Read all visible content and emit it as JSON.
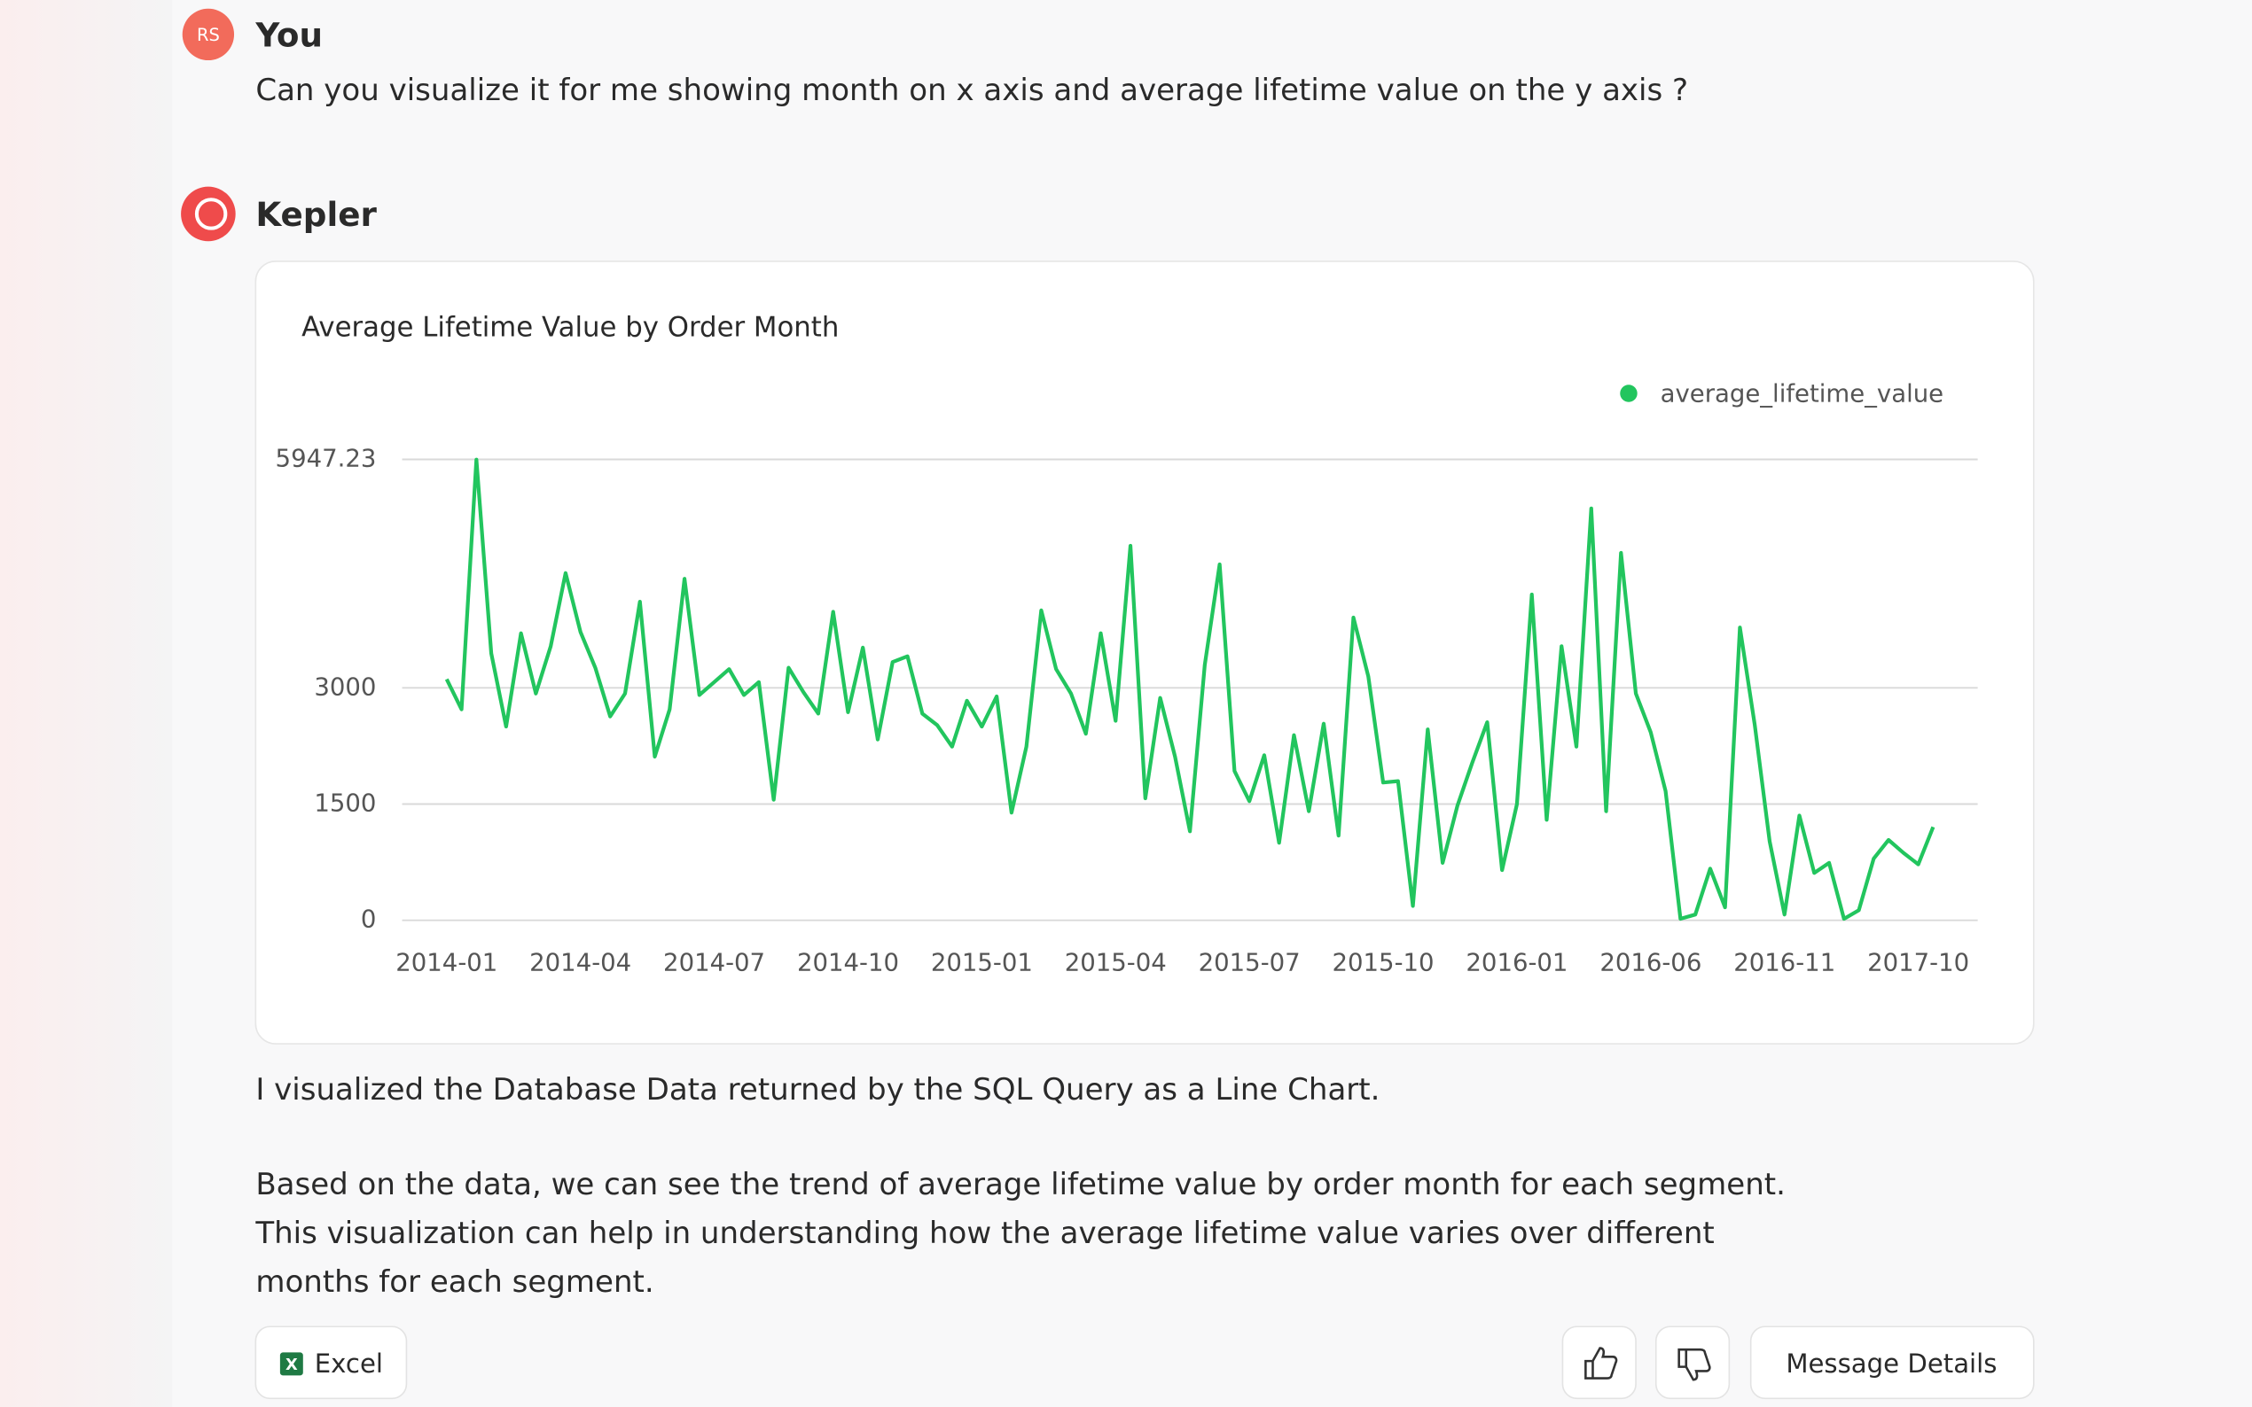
{
  "user": {
    "avatar": "RS",
    "name": "You",
    "message": "Can you visualize it for me showing month on x axis and average lifetime value on the y axis ?"
  },
  "assistant": {
    "name": "Kepler",
    "paragraphs": [
      "I visualized the Database Data returned by the SQL Query as a Line Chart.",
      "Based on the data, we can see the trend of average lifetime value by order month for each segment.",
      "This visualization can help in understanding how the average lifetime value varies over different",
      "months for each segment."
    ],
    "buttons": {
      "excel": "Excel",
      "details": "Message Details"
    }
  },
  "chart_data": {
    "type": "line",
    "title": "Average Lifetime Value by Order Month",
    "categories": [
      "2014-01",
      null,
      null,
      null,
      null,
      null,
      null,
      null,
      null,
      "2014-04",
      null,
      null,
      null,
      null,
      null,
      null,
      null,
      null,
      "2014-07",
      null,
      null,
      null,
      null,
      null,
      null,
      null,
      null,
      "2014-10",
      null,
      null,
      null,
      null,
      null,
      null,
      null,
      null,
      "2015-01",
      null,
      null,
      null,
      null,
      null,
      null,
      null,
      null,
      "2015-04",
      null,
      null,
      null,
      null,
      null,
      null,
      null,
      null,
      "2015-07",
      null,
      null,
      null,
      null,
      null,
      null,
      null,
      null,
      "2015-10",
      null,
      null,
      null,
      null,
      null,
      null,
      null,
      null,
      "2016-01",
      null,
      null,
      null,
      null,
      null,
      null,
      null,
      null,
      "2016-06",
      null,
      null,
      null,
      null,
      null,
      null,
      null,
      null,
      "2016-11",
      null,
      null,
      null,
      null,
      null,
      null,
      null,
      null,
      "2017-10",
      null
    ],
    "series": [
      {
        "name": "average_lifetime_value",
        "color": "#22c55e",
        "values": [
          3111,
          2722,
          5945,
          3444,
          2500,
          3704,
          2926,
          3537,
          4481,
          3722,
          3259,
          2630,
          2926,
          4111,
          2111,
          2722,
          4407,
          2907,
          3074,
          3241,
          2907,
          3074,
          1556,
          3259,
          2944,
          2667,
          3981,
          2685,
          3519,
          2333,
          3333,
          3407,
          2667,
          2518,
          2241,
          2833,
          2500,
          2889,
          1389,
          2241,
          4000,
          3241,
          2926,
          2407,
          3704,
          2574,
          4833,
          1574,
          2870,
          2111,
          1148,
          3296,
          4593,
          1926,
          1537,
          2130,
          1000,
          2389,
          1407,
          2537,
          1093,
          3907,
          3148,
          1778,
          1796,
          185,
          2463,
          741,
          1481,
          2037,
          2556,
          648,
          1500,
          4204,
          1296,
          3537,
          2241,
          5315,
          1407,
          4741,
          2926,
          2426,
          1667,
          19,
          74,
          667,
          167,
          3778,
          2519,
          1019,
          74,
          1352,
          611,
          741,
          19,
          130,
          796,
          1037,
          870,
          722,
          1204
        ]
      }
    ],
    "ylim": [
      0,
      5947.23
    ],
    "yticks": [
      0,
      1500,
      3000,
      5947.23
    ],
    "grid": true,
    "legend": "top-right"
  }
}
